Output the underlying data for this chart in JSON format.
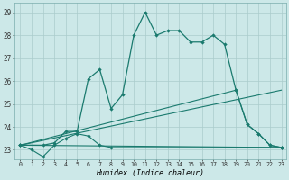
{
  "xlabel": "Humidex (Indice chaleur)",
  "background_color": "#cce8e8",
  "grid_color": "#aacccc",
  "line_color": "#1a7a6e",
  "xlim": [
    -0.5,
    23.4
  ],
  "ylim": [
    22.6,
    29.4
  ],
  "yticks": [
    23,
    24,
    25,
    26,
    27,
    28,
    29
  ],
  "xticks": [
    0,
    1,
    2,
    3,
    4,
    5,
    6,
    7,
    8,
    9,
    10,
    11,
    12,
    13,
    14,
    15,
    16,
    17,
    18,
    19,
    20,
    21,
    22,
    23
  ],
  "curve_main": {
    "x": [
      0,
      2,
      3,
      4,
      5,
      6,
      7,
      8,
      9,
      10,
      11,
      12,
      13,
      14,
      15,
      16,
      17,
      18,
      19,
      20,
      21,
      22,
      23
    ],
    "y": [
      23.2,
      23.2,
      23.3,
      23.8,
      23.8,
      26.1,
      26.5,
      24.8,
      25.4,
      28.0,
      29.0,
      28.0,
      28.2,
      28.2,
      27.7,
      27.7,
      28.0,
      27.6,
      25.6,
      24.1,
      23.7,
      23.2,
      23.1
    ]
  },
  "curve_low": {
    "x": [
      0,
      1,
      2,
      3,
      4,
      5,
      6,
      7,
      8,
      23
    ],
    "y": [
      23.2,
      23.0,
      22.7,
      23.2,
      23.5,
      23.7,
      23.6,
      23.2,
      23.1,
      23.1
    ]
  },
  "line_diag1": {
    "x": [
      0,
      23
    ],
    "y": [
      23.2,
      25.6
    ]
  },
  "line_diag2": {
    "x": [
      0,
      19,
      20,
      21,
      22,
      23
    ],
    "y": [
      23.2,
      25.6,
      24.1,
      23.7,
      23.2,
      23.1
    ]
  },
  "line_flat": {
    "x": [
      0,
      23
    ],
    "y": [
      23.2,
      23.1
    ]
  }
}
